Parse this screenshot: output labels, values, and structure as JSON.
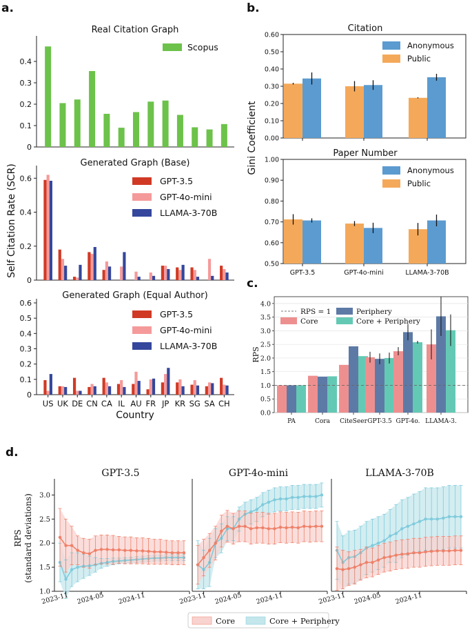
{
  "panel_letters": {
    "a": "a.",
    "b": "b.",
    "c": "c.",
    "d": "d."
  },
  "colors": {
    "scopus": "#6cc24a",
    "gpt35": "#d03a25",
    "gpt4o": "#f59a9a",
    "llama": "#34479c",
    "anon": "#5b9bd0",
    "public": "#f4a95a",
    "core": "#ee8f8f",
    "periphery": "#5d7aa6",
    "cp": "#64c9b4",
    "core_line": "#ef8068",
    "cp_line": "#7fcbdc"
  },
  "chart_data": [
    {
      "id": "a_real",
      "type": "bar",
      "title": "Real Citation Graph",
      "categories": [
        "US",
        "UK",
        "DE",
        "CN",
        "CA",
        "IL",
        "AU",
        "FR",
        "JP",
        "KR",
        "SG",
        "SA",
        "CH"
      ],
      "series": [
        {
          "name": "Scopus",
          "values": [
            0.47,
            0.205,
            0.222,
            0.355,
            0.155,
            0.09,
            0.163,
            0.212,
            0.217,
            0.15,
            0.092,
            0.082,
            0.107
          ]
        }
      ],
      "ylim": [
        0,
        0.5
      ],
      "yticks": [
        "0",
        "0.1",
        "0.2",
        "0.3",
        "0.4"
      ],
      "legend": "top-right"
    },
    {
      "id": "a_base",
      "type": "bar",
      "title": "Generated Graph (Base)",
      "categories": [
        "US",
        "UK",
        "DE",
        "CN",
        "CA",
        "IL",
        "AU",
        "FR",
        "JP",
        "KR",
        "SG",
        "SA",
        "CH"
      ],
      "series": [
        {
          "name": "GPT-3.5",
          "values": [
            0.59,
            0.18,
            0.02,
            0.165,
            0.06,
            0.0,
            0.0,
            0.0,
            0.085,
            0.075,
            0.075,
            0.0,
            0.085
          ]
        },
        {
          "name": "GPT-4o-mini",
          "values": [
            0.62,
            0.125,
            0.015,
            0.155,
            0.11,
            0.08,
            0.05,
            0.045,
            0.085,
            0.06,
            0.06,
            0.125,
            0.065
          ]
        },
        {
          "name": "LLAMA-3-70B",
          "values": [
            0.585,
            0.085,
            0.09,
            0.195,
            0.08,
            0.165,
            0.02,
            0.025,
            0.065,
            0.09,
            0.02,
            0.025,
            0.045
          ]
        }
      ],
      "ylim": [
        0,
        0.65
      ],
      "yticks": [
        "0",
        "0.2",
        "0.4",
        "0.6"
      ],
      "ylabel": "Self Citation Rate (SCR)",
      "legend": "top-right"
    },
    {
      "id": "a_equal",
      "type": "bar",
      "title": "Generated Graph (Equal Author)",
      "categories": [
        "US",
        "UK",
        "DE",
        "CN",
        "CA",
        "IL",
        "AU",
        "FR",
        "JP",
        "KR",
        "SG",
        "SA",
        "CH"
      ],
      "series": [
        {
          "name": "GPT-3.5",
          "values": [
            0.095,
            0.055,
            0.11,
            0.05,
            0.11,
            0.07,
            0.07,
            0.035,
            0.08,
            0.08,
            0.065,
            0.055,
            0.11
          ]
        },
        {
          "name": "GPT-4o-mini",
          "values": [
            0.025,
            0.055,
            0.025,
            0.07,
            0.08,
            0.095,
            0.15,
            0.1,
            0.135,
            0.1,
            0.095,
            0.08,
            0.065
          ]
        },
        {
          "name": "LLAMA-3-70B",
          "values": [
            0.135,
            0.05,
            0.025,
            0.055,
            0.055,
            0.05,
            0.09,
            0.105,
            0.175,
            0.055,
            0.06,
            0.075,
            0.06
          ]
        }
      ],
      "ylim": [
        0,
        0.6
      ],
      "yticks": [
        "0",
        "0.1",
        "0.2",
        "0.3",
        "0.4",
        "0.5",
        "0.6"
      ],
      "xlabel": "Country",
      "legend": "top-right"
    },
    {
      "id": "b_citation",
      "type": "bar",
      "title": "Citation",
      "categories": [
        "GPT-3.5",
        "GPT-4o-mini",
        "LLAMA-3-70B"
      ],
      "series": [
        {
          "name": "Public",
          "values": [
            0.315,
            0.3,
            0.233
          ],
          "errors": [
            0.005,
            0.03,
            0.003
          ]
        },
        {
          "name": "Anonymous",
          "values": [
            0.345,
            0.307,
            0.352
          ],
          "errors": [
            0.035,
            0.028,
            0.02
          ]
        }
      ],
      "ylim": [
        0.0,
        0.6
      ],
      "yticks": [
        "0.00",
        "0.10",
        "0.20",
        "0.30",
        "0.40",
        "0.50",
        "0.60"
      ],
      "legend": "top-right"
    },
    {
      "id": "b_paper",
      "type": "bar",
      "title": "Paper Number",
      "categories": [
        "GPT-3.5",
        "GPT-4o-mini",
        "LLAMA-3-70B"
      ],
      "series": [
        {
          "name": "Public",
          "values": [
            0.712,
            0.692,
            0.665
          ],
          "errors": [
            0.025,
            0.012,
            0.03
          ]
        },
        {
          "name": "Anonymous",
          "values": [
            0.707,
            0.671,
            0.707
          ],
          "errors": [
            0.01,
            0.025,
            0.028
          ]
        }
      ],
      "ylim": [
        0.5,
        1.0
      ],
      "yticks": [
        "0.50",
        "0.60",
        "0.70",
        "0.80",
        "0.90",
        "1.00"
      ],
      "ylabel": "Gini Coefficient",
      "legend": "top-right"
    },
    {
      "id": "c_rps",
      "type": "bar",
      "categories": [
        "PA",
        "Cora",
        "CiteSeer",
        "GPT-3.5",
        "GPT-4o.",
        "LLAMA-3."
      ],
      "series": [
        {
          "name": "Core",
          "values": [
            1.0,
            1.35,
            1.75,
            2.03,
            2.25,
            2.5
          ],
          "errors": [
            0,
            0,
            0,
            0.2,
            0.15,
            0.55
          ]
        },
        {
          "name": "Periphery",
          "values": [
            1.0,
            1.32,
            2.43,
            1.97,
            2.95,
            3.53
          ],
          "errors": [
            0,
            0,
            0,
            0.2,
            0.3,
            0.72
          ]
        },
        {
          "name": "Core + Periphery",
          "values": [
            1.0,
            1.33,
            2.07,
            2.0,
            2.58,
            3.02
          ],
          "errors": [
            0,
            0,
            0,
            0.2,
            0.05,
            0.58
          ]
        }
      ],
      "reference_line": {
        "label": "RPS = 1",
        "y": 1.0
      },
      "ylim": [
        0.0,
        4.25
      ],
      "yticks": [
        "0.0",
        "0.5",
        "1.0",
        "1.5",
        "2.0",
        "2.5",
        "3.0",
        "3.5",
        "4.0"
      ],
      "ylabel": "RPS",
      "legend": "top"
    },
    {
      "id": "d_gpt35",
      "type": "line",
      "title": "GPT-3.5",
      "series": [
        {
          "name": "Core",
          "values": [
            2.12,
            1.95,
            1.95,
            1.85,
            1.8,
            1.78,
            1.85,
            1.87,
            1.87,
            1.86,
            1.86,
            1.85,
            1.85,
            1.84,
            1.84,
            1.83,
            1.82,
            1.82,
            1.81,
            1.8,
            1.8,
            1.8
          ],
          "errors": [
            0.6,
            0.55,
            0.4,
            0.3,
            0.3,
            0.3,
            0.3,
            0.3,
            0.3,
            0.3,
            0.28,
            0.28,
            0.28,
            0.27,
            0.27,
            0.27,
            0.26,
            0.26,
            0.25,
            0.25,
            0.25,
            0.25
          ]
        },
        {
          "name": "Core + Periphery",
          "values": [
            1.6,
            1.25,
            1.45,
            1.5,
            1.52,
            1.53,
            1.55,
            1.58,
            1.6,
            1.62,
            1.63,
            1.64,
            1.65,
            1.66,
            1.67,
            1.68,
            1.69,
            1.69,
            1.7,
            1.7,
            1.7,
            1.7
          ],
          "errors": [
            0.4,
            0.4,
            0.35,
            0.3,
            0.25,
            0.2,
            0.15,
            0.1,
            0.08,
            0.07,
            0.06,
            0.06,
            0.06,
            0.06,
            0.06,
            0.06,
            0.06,
            0.06,
            0.06,
            0.06,
            0.06,
            0.06
          ]
        }
      ],
      "ylim": [
        1.0,
        3.25
      ],
      "yticks": [
        "1.0",
        "1.5",
        "2.0",
        "2.5",
        "3.0"
      ],
      "xticks": [
        "2023-11",
        "2024-05",
        "2024-11"
      ],
      "ylabel": "RPS",
      "ylabel2": "(standard deviations)"
    },
    {
      "id": "d_gpt4o",
      "type": "line",
      "title": "GPT-4o-mini",
      "series": [
        {
          "name": "Core",
          "values": [
            1.55,
            1.7,
            1.85,
            2.0,
            2.25,
            2.35,
            2.3,
            2.35,
            2.35,
            2.3,
            2.32,
            2.32,
            2.3,
            2.3,
            2.33,
            2.32,
            2.33,
            2.32,
            2.35,
            2.34,
            2.35,
            2.35
          ],
          "errors": [
            0.4,
            0.38,
            0.35,
            0.35,
            0.33,
            0.33,
            0.32,
            0.32,
            0.32,
            0.32,
            0.32,
            0.32,
            0.32,
            0.32,
            0.32,
            0.32,
            0.32,
            0.32,
            0.32,
            0.32,
            0.32,
            0.32
          ]
        },
        {
          "name": "Core + Periphery",
          "values": [
            1.55,
            1.45,
            1.6,
            2.0,
            2.1,
            2.3,
            2.3,
            2.5,
            2.6,
            2.65,
            2.7,
            2.8,
            2.85,
            2.9,
            2.92,
            2.92,
            2.95,
            2.95,
            2.97,
            2.97,
            2.97,
            3.0
          ],
          "errors": [
            0.5,
            0.4,
            0.5,
            0.3,
            0.3,
            0.25,
            0.25,
            0.25,
            0.25,
            0.25,
            0.25,
            0.25,
            0.25,
            0.25,
            0.25,
            0.25,
            0.25,
            0.25,
            0.25,
            0.25,
            0.25,
            0.25
          ]
        }
      ],
      "ylim": [
        1.0,
        3.25
      ],
      "xticks": [
        "2023-11",
        "2024-05",
        "2024-11"
      ]
    },
    {
      "id": "d_llama",
      "type": "line",
      "title": "LLAMA-3-70B",
      "series": [
        {
          "name": "Core",
          "values": [
            1.47,
            1.45,
            1.47,
            1.5,
            1.55,
            1.6,
            1.6,
            1.65,
            1.7,
            1.72,
            1.75,
            1.77,
            1.78,
            1.8,
            1.8,
            1.82,
            1.83,
            1.84,
            1.84,
            1.84,
            1.85,
            1.85
          ],
          "errors": [
            0.45,
            0.4,
            0.35,
            0.35,
            0.32,
            0.32,
            0.3,
            0.3,
            0.3,
            0.3,
            0.3,
            0.3,
            0.3,
            0.3,
            0.3,
            0.3,
            0.3,
            0.3,
            0.3,
            0.3,
            0.3,
            0.3
          ]
        },
        {
          "name": "Core + Periphery",
          "values": [
            1.85,
            1.6,
            1.7,
            1.72,
            1.8,
            1.9,
            1.95,
            2.0,
            2.05,
            2.15,
            2.2,
            2.3,
            2.35,
            2.4,
            2.45,
            2.5,
            2.5,
            2.5,
            2.52,
            2.55,
            2.55,
            2.55
          ],
          "errors": [
            0.6,
            0.55,
            0.55,
            0.55,
            0.55,
            0.55,
            0.55,
            0.55,
            0.55,
            0.55,
            0.6,
            0.6,
            0.6,
            0.62,
            0.62,
            0.65,
            0.65,
            0.65,
            0.65,
            0.65,
            0.65,
            0.65
          ]
        }
      ],
      "ylim": [
        1.0,
        3.25
      ],
      "xticks": [
        "2023-11",
        "2024-05",
        "2024-11"
      ]
    }
  ]
}
